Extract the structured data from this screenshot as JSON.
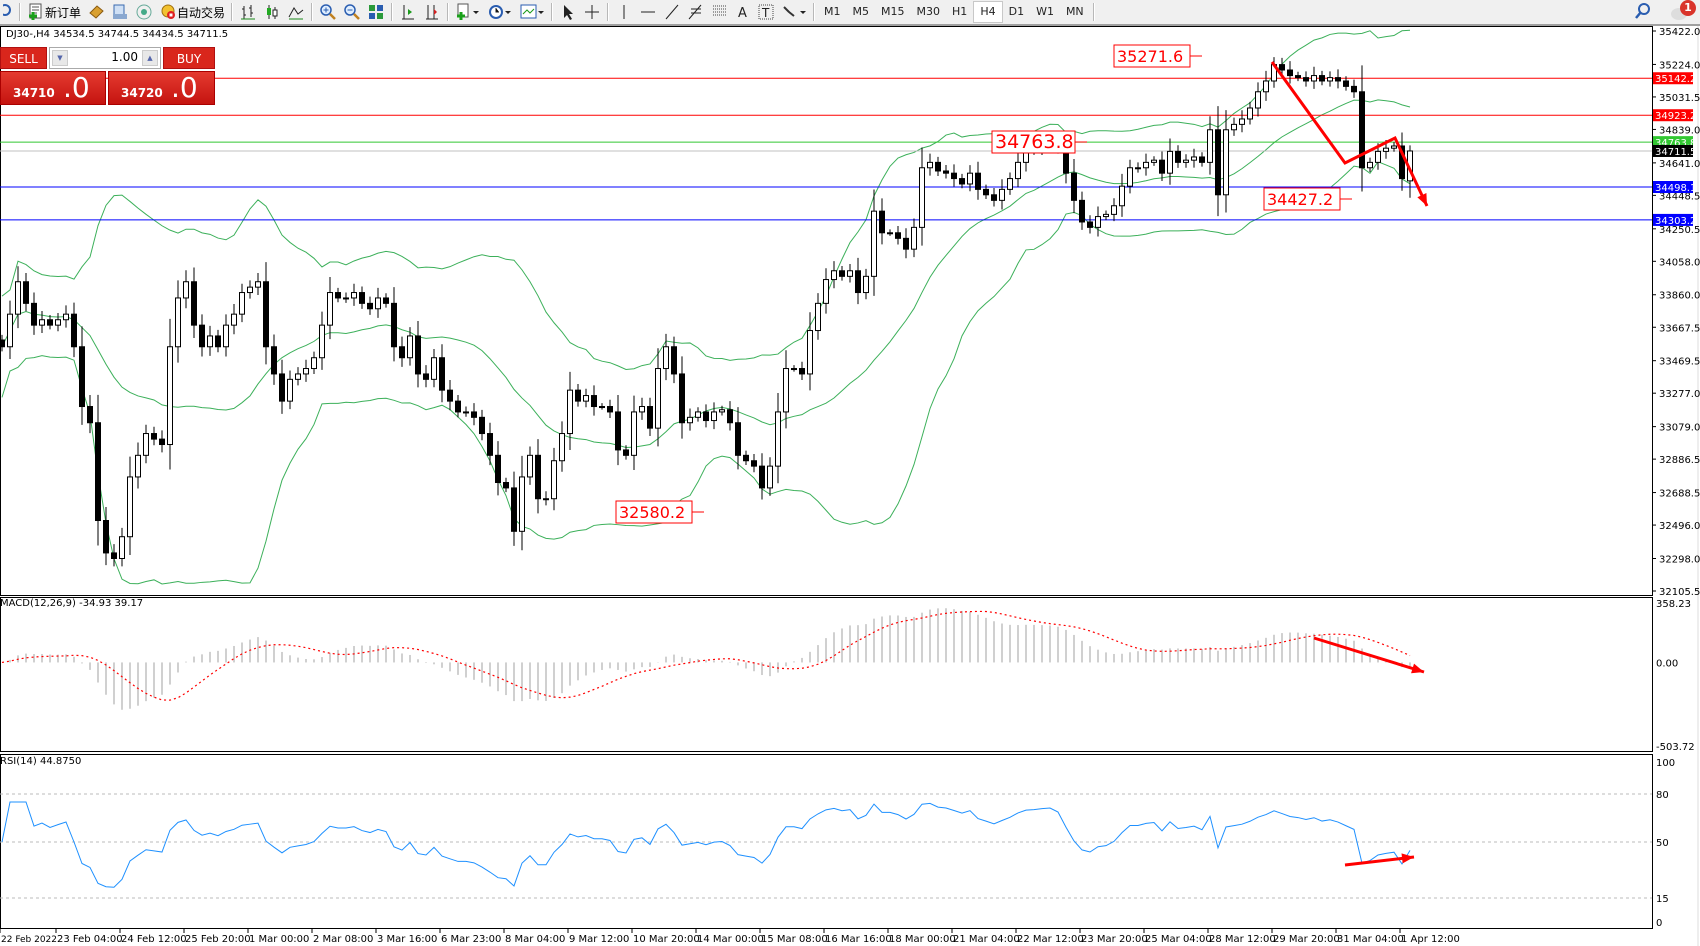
{
  "toolbar": {
    "new_order": "新订单",
    "auto_trading": "自动交易",
    "timeframes": [
      "M1",
      "M5",
      "M15",
      "M30",
      "H1",
      "H4",
      "D1",
      "W1",
      "MN"
    ],
    "active_timeframe": "H4",
    "notification_count": "1",
    "icons": [
      "search-icon",
      "new-order-icon",
      "market-watch-icon",
      "navigator-icon",
      "signals-icon",
      "auto-trading-icon",
      "bar-chart-icon",
      "candlestick-icon",
      "line-chart-icon",
      "zoom-in-icon",
      "zoom-out-icon",
      "tile-windows-icon",
      "chart-shift-icon",
      "autoscroll-icon",
      "indicators-icon",
      "periods-icon",
      "templates-icon",
      "cursor-icon",
      "crosshair-icon",
      "vertical-line-icon",
      "horizontal-line-icon",
      "trendline-icon",
      "fibonacci-icon",
      "fibo-fan-icon",
      "text-icon",
      "text-label-icon",
      "arrows-icon"
    ]
  },
  "chart_header": "DJ30-,H4  34534.5 34744.5 34434.5 34711.5",
  "trade_panel": {
    "sell_label": "SELL",
    "buy_label": "BUY",
    "lot": "1.00",
    "sell_price_main": "34710",
    "sell_price_big": ".0",
    "buy_price_main": "34720",
    "buy_price_big": ".0"
  },
  "colors": {
    "bands": "#3cb05a",
    "resistance": "#ff0000",
    "support": "#0000ff",
    "pivot": "#32c832",
    "bid": "#c0c0c0",
    "rsi": "#1e90ff",
    "macd_signal": "#ff0000",
    "macd_hist": "#c0c0c0",
    "annotation": "#ff0000"
  },
  "chart_data": {
    "type": "candlestick",
    "symbol": "DJ30-",
    "timeframe": "H4",
    "ylim": [
      32105.5,
      35422.0
    ],
    "y_ticks": [
      "35422.0",
      "35224.0",
      "35031.5",
      "34839.0",
      "34641.0",
      "34448.5",
      "34250.5",
      "34058.0",
      "33860.0",
      "33667.5",
      "33469.5",
      "33277.0",
      "33079.0",
      "32886.5",
      "32688.5",
      "32496.0",
      "32298.0",
      "32105.5"
    ],
    "x_ticks": [
      "22 Feb 2022",
      "23 Feb 04:00",
      "24 Feb 12:00",
      "25 Feb 20:00",
      "1 Mar 00:00",
      "2 Mar 08:00",
      "3 Mar 16:00",
      "6 Mar 23:00",
      "8 Mar 04:00",
      "9 Mar 12:00",
      "10 Mar 20:00",
      "14 Mar 00:00",
      "15 Mar 08:00",
      "16 Mar 16:00",
      "18 Mar 00:00",
      "21 Mar 04:00",
      "22 Mar 12:00",
      "23 Mar 20:00",
      "25 Mar 04:00",
      "28 Mar 12:00",
      "29 Mar 20:00",
      "31 Mar 04:00",
      "1 Apr 12:00"
    ],
    "close": [
      33552,
      33745,
      33937,
      33809,
      33680,
      33712,
      33680,
      33712,
      33745,
      33552,
      33198,
      33102,
      32523,
      32331,
      32298,
      32427,
      32781,
      32909,
      33038,
      33005,
      32973,
      33552,
      33841,
      33937,
      33680,
      33552,
      33616,
      33552,
      33680,
      33745,
      33873,
      33905,
      33937,
      33552,
      33391,
      33230,
      33359,
      33391,
      33423,
      33487,
      33680,
      33873,
      33841,
      33841,
      33873,
      33809,
      33777,
      33841,
      33809,
      33552,
      33487,
      33616,
      33391,
      33359,
      33487,
      33295,
      33230,
      33166,
      33166,
      33134,
      33038,
      32909,
      32748,
      32716,
      32459,
      32781,
      32909,
      32652,
      32652,
      32877,
      33038,
      33295,
      33230,
      33263,
      33198,
      33198,
      33166,
      32941,
      32909,
      33166,
      33198,
      33070,
      33423,
      33552,
      33391,
      33102,
      33134,
      33166,
      33115,
      33166,
      33179,
      33102,
      32909,
      32877,
      32845,
      32716,
      32845,
      33166,
      33423,
      33423,
      33391,
      33648,
      33809,
      33950,
      34002,
      33969,
      34002,
      33873,
      33969,
      34355,
      34227,
      34227,
      34194,
      34130,
      34259,
      34612,
      34644,
      34593,
      34580,
      34548,
      34516,
      34580,
      34484,
      34452,
      34419,
      34484,
      34548,
      34644,
      34709,
      34721,
      34741,
      34754,
      34721,
      34580,
      34419,
      34291,
      34259,
      34323,
      34336,
      34387,
      34503,
      34612,
      34612,
      34644,
      34657,
      34580,
      34709,
      34644,
      34657,
      34676,
      34644,
      34837,
      34452,
      34837,
      34869,
      34901,
      34966,
      35062,
      35126,
      35223,
      35191,
      35158,
      35146,
      35126,
      35158,
      35126,
      35146,
      35126,
      35094,
      35062,
      34612,
      34644,
      34709,
      34728,
      34741,
      34548,
      34711.5
    ],
    "last_bar": {
      "open": 34534.5,
      "high": 34744.5,
      "low": 34434.5,
      "close": 34711.5
    },
    "horizontal_lines": [
      {
        "price": 35142.2,
        "label": "35142.2",
        "color": "#ff0000"
      },
      {
        "price": 34923.2,
        "label": "34923.2",
        "color": "#ff0000"
      },
      {
        "price": 34763.8,
        "label": "34763.8",
        "color": "#32c832"
      },
      {
        "price": 34711.5,
        "label": "34711.5",
        "color": "#000000"
      },
      {
        "price": 34498.1,
        "label": "34498.1",
        "color": "#0000ff"
      },
      {
        "price": 34303.2,
        "label": "34303.2",
        "color": "#0000ff"
      }
    ],
    "price_labels": [
      {
        "text": "35271.6",
        "price": 35271.6
      },
      {
        "text": "34763.8",
        "price": 34763.8
      },
      {
        "text": "34427.2",
        "price": 34427.2
      },
      {
        "text": "32580.2",
        "price": 32580.2
      }
    ],
    "indicators": {
      "bollinger": "Bollinger Bands",
      "macd": {
        "label": "MACD(12,26,9) -34.93 39.17",
        "ylim": [
          -503.72,
          358.23
        ],
        "ticks": [
          "358.23",
          "0.00",
          "-503.72"
        ]
      },
      "rsi": {
        "label": "RSI(14) 44.8750",
        "ylim": [
          0,
          100
        ],
        "ticks": [
          "100",
          "80",
          "50",
          "15",
          "0"
        ],
        "levels": [
          80,
          50,
          15
        ]
      }
    }
  }
}
